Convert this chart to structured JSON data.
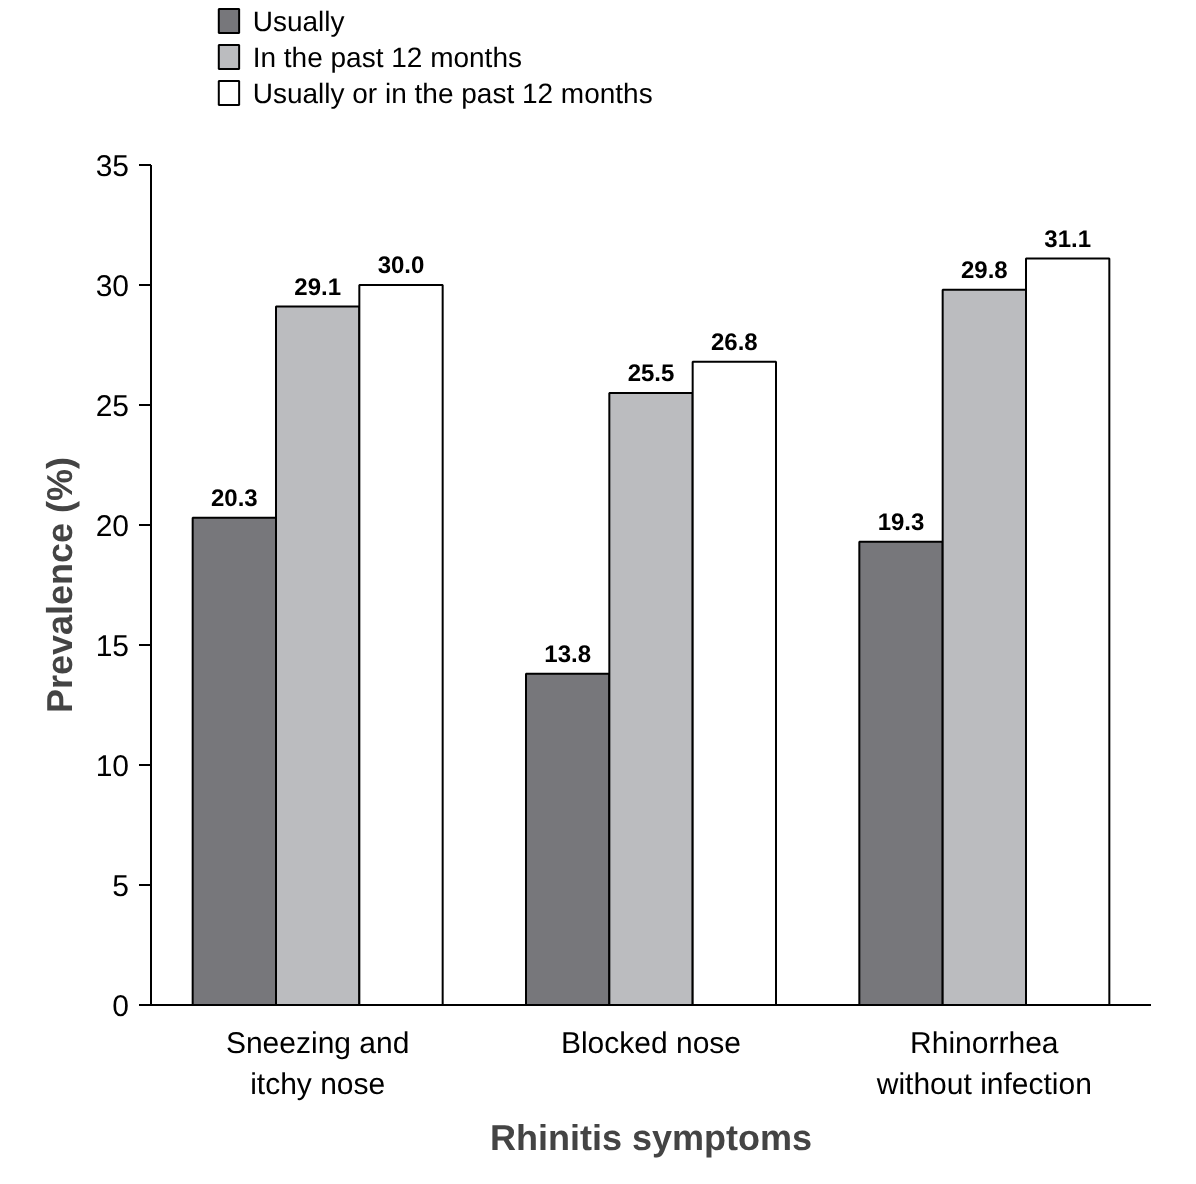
{
  "chart_data": {
    "type": "bar",
    "xlabel": "Rhinitis symptoms",
    "ylabel": "Prevalence (%)",
    "categories": [
      "Sneezing and\nitchy nose",
      "Blocked nose",
      "Rhinorrhea\nwithout infection"
    ],
    "series": [
      {
        "name": "Usually",
        "color": "#77777b",
        "values": [
          20.3,
          13.8,
          19.3
        ],
        "value_labels": [
          "20.3",
          "13.8",
          "19.3"
        ]
      },
      {
        "name": "In the past 12 months",
        "color": "#bbbcbf",
        "values": [
          29.1,
          25.5,
          29.8
        ],
        "value_labels": [
          "29.1",
          "25.5",
          "29.8"
        ]
      },
      {
        "name": "Usually or in the past 12 months",
        "color": "#ffffff",
        "values": [
          30.0,
          26.8,
          31.1
        ],
        "value_labels": [
          "30.0",
          "26.8",
          "31.1"
        ]
      }
    ],
    "ylim": [
      0,
      35
    ],
    "yticks": [
      0,
      5,
      10,
      15,
      20,
      25,
      30,
      35
    ],
    "grid": false,
    "legend": "top left"
  }
}
